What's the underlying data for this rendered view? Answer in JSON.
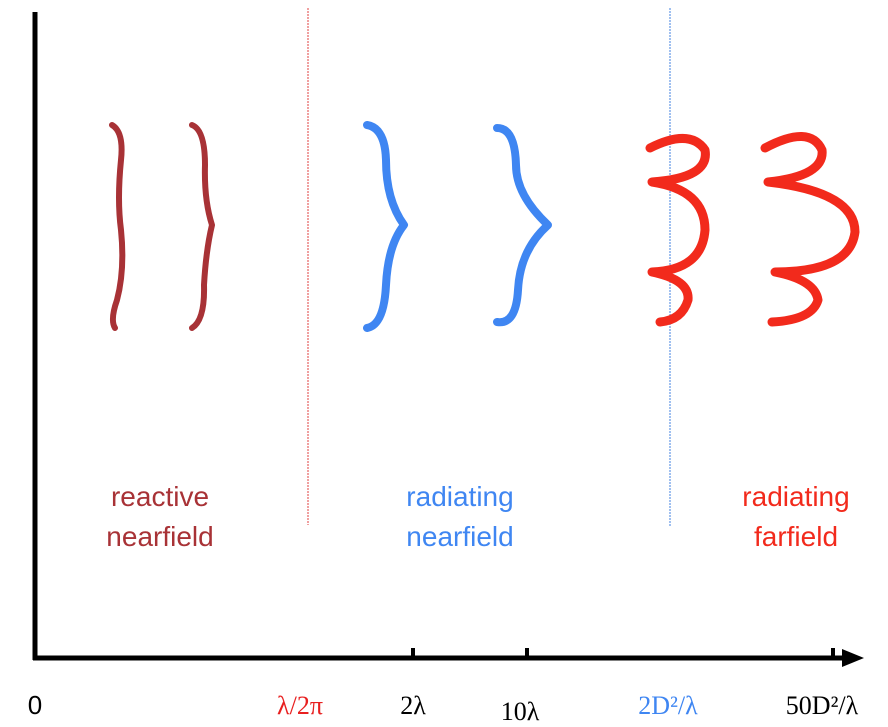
{
  "regions": [
    {
      "lines": [
        "reactive",
        "nearfield"
      ]
    },
    {
      "lines": [
        "radiating",
        "nearfield"
      ]
    },
    {
      "lines": [
        "radiating",
        "farfield"
      ]
    }
  ],
  "axis_labels": [
    "0",
    "λ/2π",
    "2λ",
    "10λ",
    "2D²/λ",
    "50D²/λ"
  ]
}
